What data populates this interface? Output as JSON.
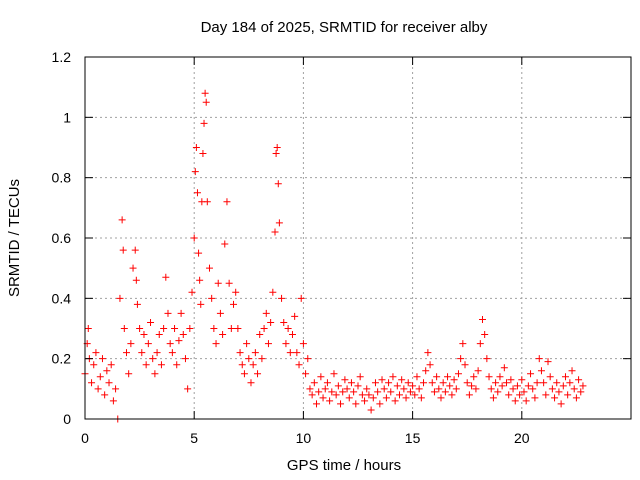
{
  "chart_data": {
    "type": "scatter",
    "title": "Day 184 of 2025, SRMTID for receiver alby",
    "xlabel": "GPS time / hours",
    "ylabel": "SRMTID / TECUs",
    "xlim": [
      0,
      25
    ],
    "ylim": [
      0,
      1.2
    ],
    "xticks": [
      0,
      5,
      10,
      15,
      20
    ],
    "xtick_labels": [
      "0",
      "5",
      "10",
      "15",
      "20"
    ],
    "yticks": [
      0,
      0.2,
      0.4,
      0.6,
      0.8,
      1.0,
      1.2
    ],
    "ytick_labels": [
      "0",
      "0.2",
      "0.4",
      "0.6",
      "0.8",
      "1",
      "1.2"
    ],
    "grid": true,
    "marker": "+",
    "series": [
      {
        "name": "SRMTID",
        "color": "#ff0000",
        "points": [
          [
            0.0,
            0.15
          ],
          [
            0.1,
            0.25
          ],
          [
            0.15,
            0.3
          ],
          [
            0.2,
            0.2
          ],
          [
            0.3,
            0.12
          ],
          [
            0.4,
            0.18
          ],
          [
            0.5,
            0.22
          ],
          [
            0.6,
            0.1
          ],
          [
            0.7,
            0.14
          ],
          [
            0.8,
            0.2
          ],
          [
            0.9,
            0.08
          ],
          [
            1.0,
            0.16
          ],
          [
            1.1,
            0.12
          ],
          [
            1.2,
            0.18
          ],
          [
            1.3,
            0.06
          ],
          [
            1.4,
            0.1
          ],
          [
            1.5,
            0.0
          ],
          [
            1.6,
            0.4
          ],
          [
            1.7,
            0.66
          ],
          [
            1.75,
            0.56
          ],
          [
            1.8,
            0.3
          ],
          [
            1.9,
            0.22
          ],
          [
            2.0,
            0.15
          ],
          [
            2.1,
            0.25
          ],
          [
            2.2,
            0.5
          ],
          [
            2.3,
            0.56
          ],
          [
            2.35,
            0.46
          ],
          [
            2.4,
            0.38
          ],
          [
            2.5,
            0.3
          ],
          [
            2.6,
            0.22
          ],
          [
            2.7,
            0.28
          ],
          [
            2.8,
            0.18
          ],
          [
            2.9,
            0.25
          ],
          [
            3.0,
            0.32
          ],
          [
            3.1,
            0.2
          ],
          [
            3.2,
            0.15
          ],
          [
            3.3,
            0.22
          ],
          [
            3.4,
            0.28
          ],
          [
            3.5,
            0.18
          ],
          [
            3.6,
            0.3
          ],
          [
            3.7,
            0.47
          ],
          [
            3.8,
            0.35
          ],
          [
            3.9,
            0.25
          ],
          [
            4.0,
            0.22
          ],
          [
            4.1,
            0.3
          ],
          [
            4.2,
            0.18
          ],
          [
            4.3,
            0.26
          ],
          [
            4.4,
            0.35
          ],
          [
            4.5,
            0.28
          ],
          [
            4.6,
            0.2
          ],
          [
            4.7,
            0.1
          ],
          [
            4.8,
            0.3
          ],
          [
            4.9,
            0.42
          ],
          [
            5.0,
            0.6
          ],
          [
            5.05,
            0.82
          ],
          [
            5.1,
            0.9
          ],
          [
            5.15,
            0.75
          ],
          [
            5.2,
            0.55
          ],
          [
            5.25,
            0.46
          ],
          [
            5.3,
            0.38
          ],
          [
            5.35,
            0.72
          ],
          [
            5.4,
            0.88
          ],
          [
            5.45,
            0.98
          ],
          [
            5.5,
            1.08
          ],
          [
            5.55,
            1.05
          ],
          [
            5.6,
            0.72
          ],
          [
            5.7,
            0.5
          ],
          [
            5.8,
            0.4
          ],
          [
            5.9,
            0.3
          ],
          [
            6.0,
            0.25
          ],
          [
            6.1,
            0.45
          ],
          [
            6.2,
            0.35
          ],
          [
            6.3,
            0.28
          ],
          [
            6.4,
            0.58
          ],
          [
            6.5,
            0.72
          ],
          [
            6.6,
            0.45
          ],
          [
            6.7,
            0.3
          ],
          [
            6.8,
            0.38
          ],
          [
            6.9,
            0.42
          ],
          [
            7.0,
            0.3
          ],
          [
            7.1,
            0.22
          ],
          [
            7.2,
            0.18
          ],
          [
            7.3,
            0.15
          ],
          [
            7.4,
            0.25
          ],
          [
            7.5,
            0.2
          ],
          [
            7.6,
            0.12
          ],
          [
            7.7,
            0.18
          ],
          [
            7.8,
            0.22
          ],
          [
            7.9,
            0.15
          ],
          [
            8.0,
            0.28
          ],
          [
            8.1,
            0.2
          ],
          [
            8.2,
            0.3
          ],
          [
            8.3,
            0.35
          ],
          [
            8.4,
            0.25
          ],
          [
            8.5,
            0.32
          ],
          [
            8.6,
            0.42
          ],
          [
            8.7,
            0.62
          ],
          [
            8.75,
            0.88
          ],
          [
            8.8,
            0.9
          ],
          [
            8.85,
            0.78
          ],
          [
            8.9,
            0.65
          ],
          [
            9.0,
            0.4
          ],
          [
            9.1,
            0.32
          ],
          [
            9.2,
            0.25
          ],
          [
            9.3,
            0.3
          ],
          [
            9.4,
            0.22
          ],
          [
            9.5,
            0.28
          ],
          [
            9.6,
            0.34
          ],
          [
            9.7,
            0.22
          ],
          [
            9.8,
            0.18
          ],
          [
            9.9,
            0.4
          ],
          [
            10.0,
            0.25
          ],
          [
            10.1,
            0.15
          ],
          [
            10.2,
            0.2
          ],
          [
            10.3,
            0.1
          ],
          [
            10.4,
            0.08
          ],
          [
            10.5,
            0.12
          ],
          [
            10.6,
            0.05
          ],
          [
            10.7,
            0.09
          ],
          [
            10.8,
            0.14
          ],
          [
            10.9,
            0.07
          ],
          [
            11.0,
            0.1
          ],
          [
            11.1,
            0.12
          ],
          [
            11.2,
            0.06
          ],
          [
            11.3,
            0.09
          ],
          [
            11.4,
            0.15
          ],
          [
            11.5,
            0.08
          ],
          [
            11.6,
            0.11
          ],
          [
            11.7,
            0.05
          ],
          [
            11.8,
            0.09
          ],
          [
            11.9,
            0.13
          ],
          [
            12.0,
            0.1
          ],
          [
            12.1,
            0.07
          ],
          [
            12.2,
            0.12
          ],
          [
            12.3,
            0.09
          ],
          [
            12.4,
            0.05
          ],
          [
            12.5,
            0.11
          ],
          [
            12.6,
            0.14
          ],
          [
            12.7,
            0.08
          ],
          [
            12.8,
            0.06
          ],
          [
            12.9,
            0.1
          ],
          [
            13.0,
            0.08
          ],
          [
            13.1,
            0.03
          ],
          [
            13.2,
            0.07
          ],
          [
            13.3,
            0.12
          ],
          [
            13.4,
            0.09
          ],
          [
            13.5,
            0.05
          ],
          [
            13.6,
            0.13
          ],
          [
            13.7,
            0.1
          ],
          [
            13.8,
            0.07
          ],
          [
            13.9,
            0.12
          ],
          [
            14.0,
            0.09
          ],
          [
            14.1,
            0.14
          ],
          [
            14.2,
            0.06
          ],
          [
            14.3,
            0.11
          ],
          [
            14.4,
            0.08
          ],
          [
            14.5,
            0.13
          ],
          [
            14.6,
            0.1
          ],
          [
            14.7,
            0.07
          ],
          [
            14.8,
            0.12
          ],
          [
            14.9,
            0.09
          ],
          [
            15.0,
            0.11
          ],
          [
            15.1,
            0.08
          ],
          [
            15.2,
            0.14
          ],
          [
            15.3,
            0.1
          ],
          [
            15.4,
            0.07
          ],
          [
            15.5,
            0.12
          ],
          [
            15.6,
            0.16
          ],
          [
            15.7,
            0.22
          ],
          [
            15.8,
            0.18
          ],
          [
            15.9,
            0.12
          ],
          [
            16.0,
            0.09
          ],
          [
            16.1,
            0.14
          ],
          [
            16.2,
            0.1
          ],
          [
            16.3,
            0.07
          ],
          [
            16.4,
            0.12
          ],
          [
            16.5,
            0.09
          ],
          [
            16.6,
            0.14
          ],
          [
            16.7,
            0.11
          ],
          [
            16.8,
            0.08
          ],
          [
            16.9,
            0.13
          ],
          [
            17.0,
            0.1
          ],
          [
            17.1,
            0.15
          ],
          [
            17.2,
            0.2
          ],
          [
            17.3,
            0.25
          ],
          [
            17.4,
            0.18
          ],
          [
            17.5,
            0.12
          ],
          [
            17.6,
            0.08
          ],
          [
            17.7,
            0.11
          ],
          [
            17.8,
            0.14
          ],
          [
            17.9,
            0.1
          ],
          [
            18.0,
            0.16
          ],
          [
            18.1,
            0.25
          ],
          [
            18.2,
            0.33
          ],
          [
            18.3,
            0.28
          ],
          [
            18.4,
            0.2
          ],
          [
            18.5,
            0.14
          ],
          [
            18.6,
            0.1
          ],
          [
            18.7,
            0.07
          ],
          [
            18.8,
            0.12
          ],
          [
            18.9,
            0.09
          ],
          [
            19.0,
            0.14
          ],
          [
            19.1,
            0.11
          ],
          [
            19.2,
            0.17
          ],
          [
            19.3,
            0.12
          ],
          [
            19.4,
            0.08
          ],
          [
            19.5,
            0.13
          ],
          [
            19.6,
            0.1
          ],
          [
            19.7,
            0.06
          ],
          [
            19.8,
            0.11
          ],
          [
            19.9,
            0.08
          ],
          [
            20.0,
            0.13
          ],
          [
            20.1,
            0.09
          ],
          [
            20.2,
            0.06
          ],
          [
            20.3,
            0.11
          ],
          [
            20.4,
            0.15
          ],
          [
            20.5,
            0.1
          ],
          [
            20.6,
            0.07
          ],
          [
            20.7,
            0.12
          ],
          [
            20.8,
            0.2
          ],
          [
            20.9,
            0.16
          ],
          [
            21.0,
            0.12
          ],
          [
            21.1,
            0.08
          ],
          [
            21.2,
            0.19
          ],
          [
            21.3,
            0.14
          ],
          [
            21.4,
            0.1
          ],
          [
            21.5,
            0.07
          ],
          [
            21.6,
            0.12
          ],
          [
            21.7,
            0.09
          ],
          [
            21.8,
            0.05
          ],
          [
            21.9,
            0.11
          ],
          [
            22.0,
            0.14
          ],
          [
            22.1,
            0.08
          ],
          [
            22.2,
            0.12
          ],
          [
            22.3,
            0.16
          ],
          [
            22.4,
            0.1
          ],
          [
            22.5,
            0.07
          ],
          [
            22.6,
            0.13
          ],
          [
            22.7,
            0.09
          ],
          [
            22.8,
            0.11
          ]
        ]
      }
    ]
  }
}
